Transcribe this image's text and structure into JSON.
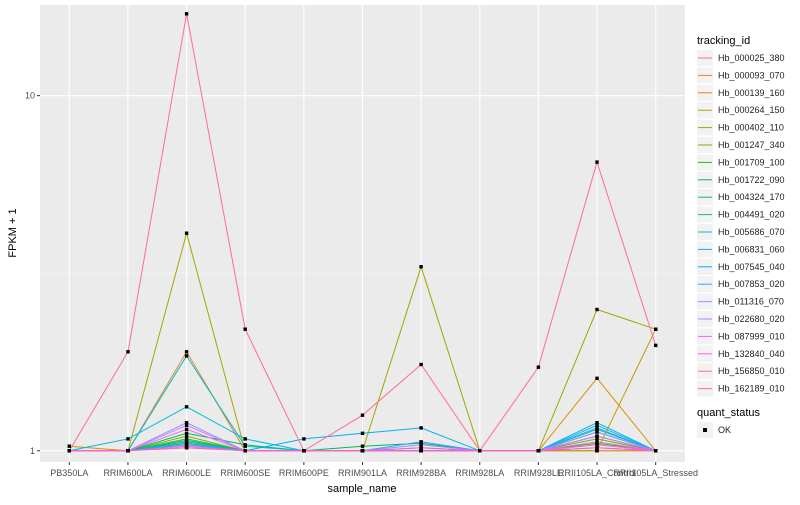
{
  "chart_data": {
    "type": "line",
    "xlabel": "sample_name",
    "ylabel": "FPKM + 1",
    "y_scale": "log10",
    "ylim": [
      0.93,
      18
    ],
    "y_ticks": [
      1,
      10
    ],
    "grid": true,
    "legend_position": "right",
    "categories": [
      "PB350LA",
      "RRIM600LA",
      "RRIM600LE",
      "RRIM600SE",
      "RRIM600PE",
      "RRIM901LA",
      "RRIM928BA",
      "RRIM928LA",
      "RRIM928LE",
      "RRII105LA_Control",
      "RRII105LA_Stressed"
    ],
    "legend_title": "tracking_id",
    "series": [
      {
        "name": "Hb_000025_380",
        "color": "#F8766D",
        "values": [
          1.0,
          1.0,
          1.02,
          1.0,
          1.0,
          1.0,
          1.0,
          1.0,
          1.0,
          1.0,
          1.0
        ]
      },
      {
        "name": "Hb_000093_070",
        "color": "#EA8331",
        "values": [
          1.0,
          1.0,
          1.9,
          1.0,
          1.0,
          1.0,
          1.0,
          1.0,
          1.0,
          1.0,
          1.0
        ]
      },
      {
        "name": "Hb_000139_160",
        "color": "#D89000",
        "values": [
          1.03,
          1.0,
          1.05,
          1.0,
          1.0,
          1.0,
          1.0,
          1.0,
          1.0,
          1.6,
          1.0
        ]
      },
      {
        "name": "Hb_000264_150",
        "color": "#C09B00",
        "values": [
          1.0,
          1.0,
          1.04,
          1.0,
          1.0,
          1.0,
          1.0,
          1.0,
          1.0,
          1.0,
          2.2
        ]
      },
      {
        "name": "Hb_000402_110",
        "color": "#A3A500",
        "values": [
          1.0,
          1.0,
          4.1,
          1.0,
          1.0,
          1.0,
          3.3,
          1.0,
          1.0,
          2.5,
          2.2
        ]
      },
      {
        "name": "Hb_001247_340",
        "color": "#7CAE00",
        "values": [
          1.0,
          1.0,
          1.1,
          1.0,
          1.0,
          1.0,
          1.0,
          1.0,
          1.0,
          1.08,
          1.0
        ]
      },
      {
        "name": "Hb_001709_100",
        "color": "#39B600",
        "values": [
          1.0,
          1.0,
          1.07,
          1.0,
          1.0,
          1.0,
          1.0,
          1.0,
          1.0,
          1.05,
          1.0
        ]
      },
      {
        "name": "Hb_001722_090",
        "color": "#00BB4E",
        "values": [
          1.0,
          1.0,
          1.12,
          1.04,
          1.0,
          1.03,
          1.05,
          1.0,
          1.0,
          1.1,
          1.0
        ]
      },
      {
        "name": "Hb_004324_170",
        "color": "#00BF7D",
        "values": [
          1.0,
          1.0,
          1.08,
          1.0,
          1.0,
          1.0,
          1.02,
          1.0,
          1.0,
          1.13,
          1.0
        ]
      },
      {
        "name": "Hb_004491_020",
        "color": "#00C1A3",
        "values": [
          1.0,
          1.0,
          1.06,
          1.0,
          1.0,
          1.0,
          1.0,
          1.0,
          1.0,
          1.02,
          1.0
        ]
      },
      {
        "name": "Hb_005686_070",
        "color": "#00BFC4",
        "values": [
          1.0,
          1.0,
          1.85,
          1.03,
          1.0,
          1.0,
          1.0,
          1.0,
          1.0,
          1.15,
          1.0
        ]
      },
      {
        "name": "Hb_006831_060",
        "color": "#00BAE0",
        "values": [
          1.0,
          1.08,
          1.33,
          1.08,
          1.0,
          1.0,
          1.0,
          1.0,
          1.0,
          1.18,
          1.0
        ]
      },
      {
        "name": "Hb_007545_040",
        "color": "#00B0F6",
        "values": [
          1.0,
          1.0,
          1.05,
          1.0,
          1.08,
          1.12,
          1.16,
          1.0,
          1.0,
          1.2,
          1.0
        ]
      },
      {
        "name": "Hb_007853_020",
        "color": "#35A2FF",
        "values": [
          1.0,
          1.0,
          1.04,
          1.0,
          1.0,
          1.0,
          1.06,
          1.0,
          1.0,
          1.16,
          1.0
        ]
      },
      {
        "name": "Hb_011316_070",
        "color": "#9590FF",
        "values": [
          1.0,
          1.0,
          1.2,
          1.0,
          1.0,
          1.0,
          1.04,
          1.0,
          1.0,
          1.13,
          1.0
        ]
      },
      {
        "name": "Hb_022680_020",
        "color": "#C77CFF",
        "values": [
          1.0,
          1.0,
          1.18,
          1.0,
          1.0,
          1.0,
          1.0,
          1.0,
          1.0,
          1.1,
          1.0
        ]
      },
      {
        "name": "Hb_087999_010",
        "color": "#E76BF3",
        "values": [
          1.0,
          1.0,
          1.15,
          1.0,
          1.0,
          1.0,
          1.0,
          1.0,
          1.0,
          1.06,
          1.0
        ]
      },
      {
        "name": "Hb_132840_040",
        "color": "#FA62DB",
        "values": [
          1.0,
          1.0,
          1.03,
          1.0,
          1.0,
          1.0,
          1.02,
          1.0,
          1.0,
          1.04,
          1.0
        ]
      },
      {
        "name": "Hb_156850_010",
        "color": "#FF62BC",
        "values": [
          1.0,
          1.0,
          1.02,
          1.0,
          1.0,
          1.0,
          1.0,
          1.0,
          1.0,
          1.02,
          1.0
        ]
      },
      {
        "name": "Hb_162189_010",
        "color": "#FF6C91",
        "values": [
          1.0,
          1.9,
          17.0,
          2.2,
          1.0,
          1.26,
          1.75,
          1.0,
          1.72,
          6.5,
          1.98
        ]
      }
    ],
    "legend2_title": "quant_status",
    "legend2_label": "OK"
  }
}
